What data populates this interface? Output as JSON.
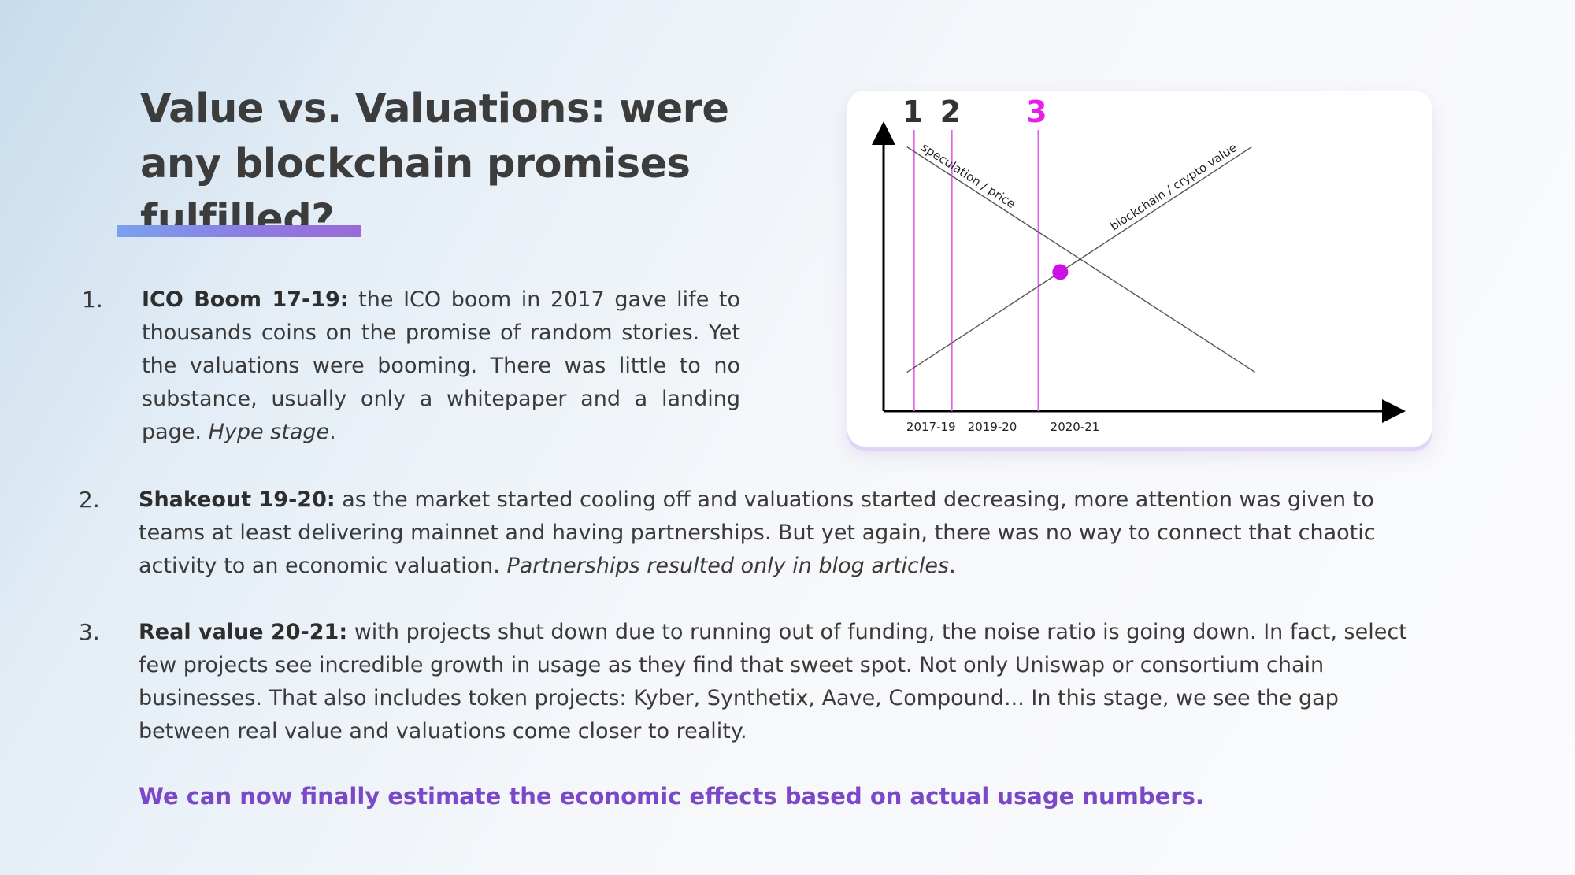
{
  "title": "Value vs. Valuations: were any blockchain promises fulfilled?",
  "items": [
    {
      "num": "1.",
      "head": "ICO Boom 17-19:",
      "body": " the ICO boom in 2017 gave life to thousands coins on the promise of random stories. Yet the valuations were booming. There was little to no substance, usually only a whitepaper and a landing page. ",
      "italic": "Hype stage",
      "tail": "."
    },
    {
      "num": "2.",
      "head": "Shakeout 19-20:",
      "body": " as the market started cooling off and valuations started decreasing, more attention was given to teams at least delivering mainnet and having partnerships. But yet again, there was no way to connect that chaotic activity to an economic valuation. ",
      "italic": "Partnerships resulted only in blog articles",
      "tail": "."
    },
    {
      "num": "3.",
      "head": "Real value 20-21:",
      "body": " with projects shut down due to running out of funding, the noise ratio is going down. In fact, select few projects see incredible growth in usage as they find that sweet spot. Not only Uniswap or consortium chain businesses. That also includes token projects: Kyber, Synthetix, Aave, Compound... In this stage, we see the gap between real value and valuations come closer to reality.",
      "italic": "",
      "tail": ""
    }
  ],
  "cta": "We can now finally estimate the economic effects based on actual usage numbers.",
  "chart_data": {
    "type": "line",
    "stage_markers": [
      {
        "label": "1",
        "color": "#333333"
      },
      {
        "label": "2",
        "color": "#333333"
      },
      {
        "label": "3",
        "color": "#e81ee8"
      }
    ],
    "x_tick_labels": [
      "2017-19",
      "2019-20",
      "2020-21"
    ],
    "series": [
      {
        "name": "speculation / price",
        "trend": "decreasing",
        "values": [
          0.95,
          0.14
        ]
      },
      {
        "name": "blockchain / crypto value",
        "trend": "increasing",
        "values": [
          0.14,
          0.95
        ]
      }
    ],
    "highlight_point": {
      "color": "#cc10e6"
    },
    "colors": {
      "stage_line": "#e060e6",
      "stage3_label": "#e81ee8",
      "axis": "#000000",
      "series_line": "#555555"
    }
  }
}
